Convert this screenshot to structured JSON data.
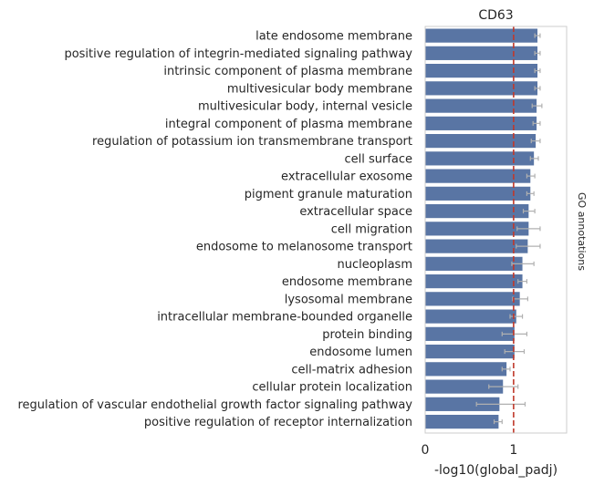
{
  "chart_data": {
    "type": "bar",
    "orientation": "horizontal",
    "title": "CD63",
    "xlabel": "-log10(global_padj)",
    "side_label": "GO annotations",
    "xlim": [
      0,
      1.6
    ],
    "xticks": [
      {
        "value": 0,
        "label": "0"
      },
      {
        "value": 1,
        "label": "1"
      }
    ],
    "threshold": 1.0,
    "grid": false,
    "colors": {
      "bar": "#5975a4",
      "threshold": "#c0392b",
      "error": "#b0b0b0",
      "frame": "#cccccc"
    },
    "categories": [
      "late endosome membrane",
      "positive regulation of integrin-mediated signaling pathway",
      "intrinsic component of plasma membrane",
      "multivesicular body membrane",
      "multivesicular body, internal vesicle",
      "integral component of plasma membrane",
      "regulation of potassium ion transmembrane transport",
      "cell surface",
      "extracellular exosome",
      "pigment granule maturation",
      "extracellular space",
      "cell migration",
      "endosome to melanosome transport",
      "nucleoplasm",
      "endosome membrane",
      "lysosomal membrane",
      "intracellular membrane-bounded organelle",
      "protein binding",
      "endosome lumen",
      "cell-matrix adhesion",
      "cellular protein localization",
      "regulation of vascular endothelial growth factor signaling pathway",
      "positive regulation of receptor internalization"
    ],
    "values": [
      1.27,
      1.27,
      1.27,
      1.27,
      1.26,
      1.26,
      1.25,
      1.23,
      1.19,
      1.19,
      1.17,
      1.17,
      1.16,
      1.1,
      1.1,
      1.07,
      1.03,
      1.01,
      1.01,
      0.92,
      0.88,
      0.84,
      0.83
    ],
    "errors": [
      [
        1.24,
        1.3
      ],
      [
        1.24,
        1.3
      ],
      [
        1.24,
        1.3
      ],
      [
        1.24,
        1.3
      ],
      [
        1.21,
        1.32
      ],
      [
        1.22,
        1.3
      ],
      [
        1.2,
        1.3
      ],
      [
        1.19,
        1.28
      ],
      [
        1.15,
        1.24
      ],
      [
        1.15,
        1.23
      ],
      [
        1.11,
        1.24
      ],
      [
        1.04,
        1.3
      ],
      [
        1.03,
        1.3
      ],
      [
        0.98,
        1.23
      ],
      [
        1.05,
        1.15
      ],
      [
        0.99,
        1.16
      ],
      [
        0.96,
        1.1
      ],
      [
        0.87,
        1.15
      ],
      [
        0.9,
        1.12
      ],
      [
        0.87,
        0.96
      ],
      [
        0.72,
        1.05
      ],
      [
        0.58,
        1.13
      ],
      [
        0.78,
        0.87
      ]
    ]
  }
}
